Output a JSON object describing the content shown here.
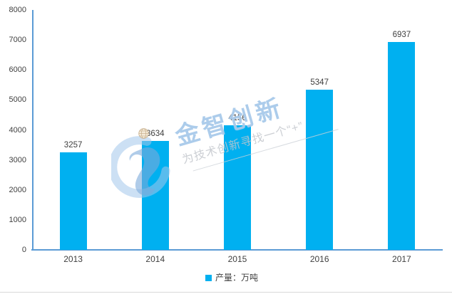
{
  "chart_data": {
    "type": "bar",
    "title": "",
    "xlabel": "",
    "ylabel": "",
    "categories": [
      "2013",
      "2014",
      "2015",
      "2016",
      "2017"
    ],
    "series": [
      {
        "name": "产量：万吨",
        "values": [
          3257,
          3634,
          4156,
          5347,
          6937
        ]
      }
    ],
    "ylim": [
      0,
      8000
    ],
    "ytick_step": 1000,
    "grid": false,
    "legend_position": "bottom",
    "bar_color": "#00B0F0",
    "axis_color": "#5B9BD5",
    "text_color": "#404040"
  },
  "legend": {
    "label": "产量：万吨",
    "marker_color": "#00B0F0"
  },
  "watermark": {
    "brand": "金智创新",
    "slogan": "为技术创新寻找一个“+”"
  }
}
